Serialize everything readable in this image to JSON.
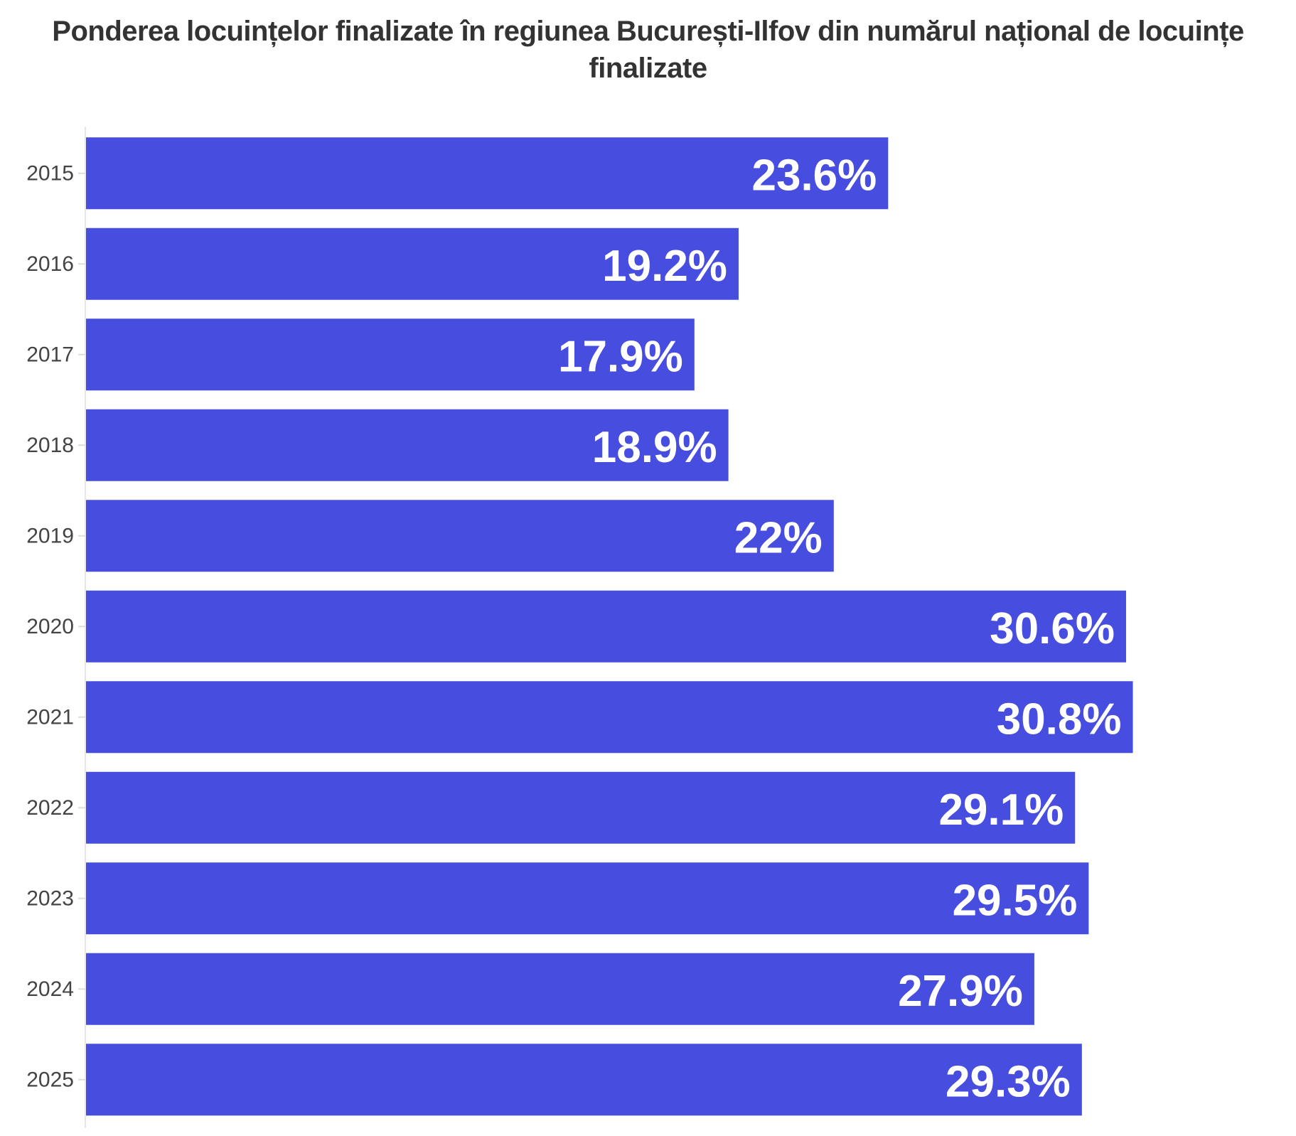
{
  "chart_data": {
    "type": "bar",
    "orientation": "horizontal",
    "title": "Ponderea locuințelor finalizate în regiunea București-Ilfov din numărul național de locuințe finalizate",
    "xlabel": "",
    "ylabel": "",
    "categories": [
      "2015",
      "2016",
      "2017",
      "2018",
      "2019",
      "2020",
      "2021",
      "2022",
      "2023",
      "2024",
      "2025"
    ],
    "values": [
      23.6,
      19.2,
      17.9,
      18.9,
      22,
      30.6,
      30.8,
      29.1,
      29.5,
      27.9,
      29.3
    ],
    "value_labels": [
      "23.6%",
      "19.2%",
      "17.9%",
      "18.9%",
      "22%",
      "30.6%",
      "30.8%",
      "29.1%",
      "29.5%",
      "27.9%",
      "29.3%"
    ],
    "xlim": [
      0,
      31.5
    ],
    "grid": false,
    "legend": "none",
    "bar_color": "#474dde",
    "label_color": "#ffffff"
  }
}
